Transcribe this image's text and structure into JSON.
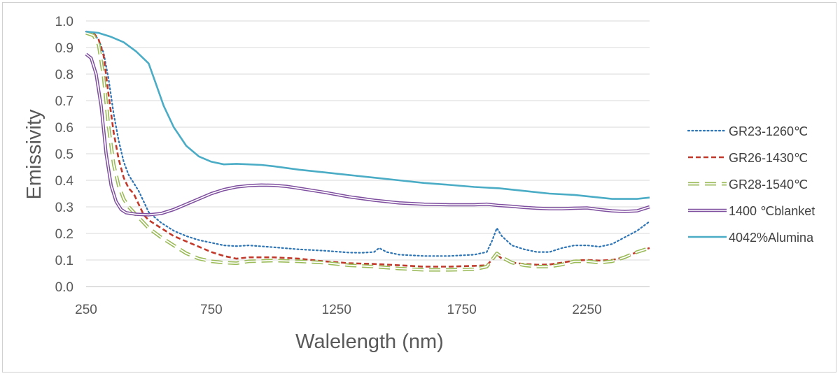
{
  "chart_data": {
    "type": "line",
    "xlabel": "Walelength (nm)",
    "ylabel": "Emissivity",
    "xlim": [
      250,
      2500
    ],
    "ylim": [
      0,
      1.0
    ],
    "x_ticks": [
      "250",
      "750",
      "1250",
      "1750",
      "2250"
    ],
    "y_ticks": [
      "0.0",
      "0.1",
      "0.2",
      "0.3",
      "0.4",
      "0.5",
      "0.6",
      "0.7",
      "0.8",
      "0.9",
      "1.0"
    ],
    "grid": "horizontal",
    "legend_position": "right",
    "series": [
      {
        "name": "GR23-1260℃",
        "color": "#2e75b6",
        "style": "dotted",
        "x": [
          250,
          280,
          300,
          320,
          340,
          360,
          380,
          400,
          420,
          440,
          460,
          480,
          500,
          550,
          600,
          650,
          700,
          750,
          800,
          850,
          900,
          1000,
          1100,
          1200,
          1300,
          1350,
          1400,
          1420,
          1450,
          1500,
          1600,
          1700,
          1800,
          1850,
          1870,
          1890,
          1910,
          1950,
          2000,
          2050,
          2100,
          2150,
          2200,
          2250,
          2300,
          2350,
          2400,
          2450,
          2500
        ],
        "values": [
          0.96,
          0.95,
          0.93,
          0.88,
          0.78,
          0.65,
          0.55,
          0.47,
          0.42,
          0.39,
          0.36,
          0.32,
          0.28,
          0.24,
          0.21,
          0.19,
          0.175,
          0.165,
          0.155,
          0.152,
          0.155,
          0.148,
          0.14,
          0.135,
          0.128,
          0.127,
          0.13,
          0.145,
          0.13,
          0.12,
          0.115,
          0.115,
          0.12,
          0.13,
          0.17,
          0.22,
          0.19,
          0.155,
          0.14,
          0.13,
          0.13,
          0.145,
          0.155,
          0.155,
          0.15,
          0.16,
          0.185,
          0.21,
          0.245
        ]
      },
      {
        "name": "GR26-1430℃",
        "color": "#c0392b",
        "style": "dashed",
        "x": [
          250,
          280,
          300,
          320,
          340,
          360,
          380,
          400,
          420,
          440,
          460,
          480,
          500,
          550,
          600,
          650,
          700,
          750,
          800,
          850,
          900,
          1000,
          1100,
          1200,
          1300,
          1400,
          1500,
          1600,
          1700,
          1800,
          1850,
          1870,
          1890,
          1910,
          1950,
          2000,
          2050,
          2100,
          2150,
          2200,
          2250,
          2300,
          2350,
          2400,
          2450,
          2500
        ],
        "values": [
          0.96,
          0.955,
          0.93,
          0.87,
          0.72,
          0.58,
          0.48,
          0.41,
          0.37,
          0.35,
          0.31,
          0.27,
          0.25,
          0.22,
          0.19,
          0.17,
          0.15,
          0.13,
          0.115,
          0.105,
          0.11,
          0.11,
          0.105,
          0.095,
          0.088,
          0.085,
          0.08,
          0.075,
          0.075,
          0.078,
          0.08,
          0.1,
          0.12,
          0.105,
          0.09,
          0.085,
          0.082,
          0.083,
          0.09,
          0.098,
          0.1,
          0.098,
          0.1,
          0.11,
          0.13,
          0.145
        ]
      },
      {
        "name": "GR28-1540℃",
        "color": "#9bbb59",
        "style": "longdash",
        "x": [
          250,
          280,
          300,
          320,
          340,
          360,
          380,
          400,
          420,
          440,
          460,
          480,
          500,
          550,
          600,
          650,
          700,
          750,
          800,
          850,
          900,
          1000,
          1100,
          1200,
          1300,
          1400,
          1500,
          1600,
          1700,
          1800,
          1850,
          1870,
          1890,
          1910,
          1950,
          2000,
          2050,
          2100,
          2150,
          2200,
          2250,
          2300,
          2350,
          2400,
          2450,
          2500
        ],
        "values": [
          0.955,
          0.945,
          0.91,
          0.79,
          0.6,
          0.46,
          0.38,
          0.33,
          0.3,
          0.28,
          0.26,
          0.24,
          0.22,
          0.185,
          0.155,
          0.125,
          0.105,
          0.095,
          0.09,
          0.088,
          0.095,
          0.098,
          0.095,
          0.09,
          0.08,
          0.075,
          0.068,
          0.063,
          0.063,
          0.065,
          0.075,
          0.1,
          0.125,
          0.11,
          0.09,
          0.08,
          0.075,
          0.075,
          0.083,
          0.095,
          0.095,
          0.09,
          0.095,
          0.11,
          0.13,
          0.145
        ]
      },
      {
        "name": "1400 ℃blanket",
        "color": "#7f4f9f",
        "style": "double",
        "x": [
          250,
          270,
          290,
          310,
          330,
          350,
          370,
          390,
          410,
          430,
          450,
          500,
          550,
          600,
          650,
          700,
          750,
          800,
          850,
          900,
          950,
          1000,
          1050,
          1100,
          1200,
          1300,
          1400,
          1500,
          1600,
          1700,
          1800,
          1850,
          1900,
          1950,
          2000,
          2050,
          2100,
          2150,
          2200,
          2250,
          2300,
          2350,
          2400,
          2450,
          2500
        ],
        "values": [
          0.875,
          0.86,
          0.8,
          0.68,
          0.5,
          0.38,
          0.32,
          0.29,
          0.278,
          0.275,
          0.272,
          0.27,
          0.275,
          0.29,
          0.31,
          0.33,
          0.35,
          0.365,
          0.375,
          0.38,
          0.382,
          0.381,
          0.377,
          0.37,
          0.355,
          0.338,
          0.325,
          0.315,
          0.31,
          0.308,
          0.308,
          0.31,
          0.305,
          0.302,
          0.298,
          0.295,
          0.293,
          0.293,
          0.295,
          0.296,
          0.29,
          0.285,
          0.283,
          0.285,
          0.3
        ]
      },
      {
        "name": "4042%Alumina",
        "color": "#4bacc6",
        "style": "solid",
        "x": [
          250,
          300,
          350,
          400,
          450,
          500,
          530,
          560,
          600,
          650,
          700,
          750,
          800,
          850,
          900,
          950,
          1000,
          1100,
          1200,
          1300,
          1400,
          1500,
          1600,
          1700,
          1800,
          1900,
          2000,
          2100,
          2200,
          2300,
          2350,
          2400,
          2450,
          2500
        ],
        "values": [
          0.96,
          0.955,
          0.94,
          0.92,
          0.885,
          0.84,
          0.76,
          0.68,
          0.6,
          0.53,
          0.49,
          0.47,
          0.46,
          0.462,
          0.46,
          0.458,
          0.453,
          0.44,
          0.43,
          0.42,
          0.41,
          0.4,
          0.39,
          0.383,
          0.375,
          0.37,
          0.36,
          0.35,
          0.345,
          0.335,
          0.33,
          0.33,
          0.33,
          0.335
        ]
      }
    ]
  }
}
